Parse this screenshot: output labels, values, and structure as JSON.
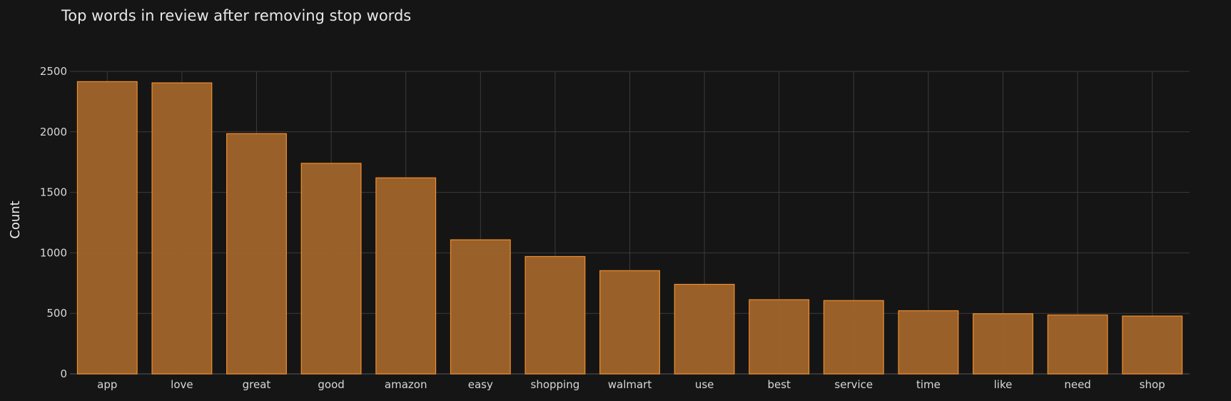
{
  "chart_data": {
    "type": "bar",
    "title": "Top words in review after removing stop words",
    "xlabel": "",
    "ylabel": "Count",
    "categories": [
      "app",
      "love",
      "great",
      "good",
      "amazon",
      "easy",
      "shopping",
      "walmart",
      "use",
      "best",
      "service",
      "time",
      "like",
      "need",
      "shop"
    ],
    "values": [
      2415,
      2405,
      1985,
      1740,
      1620,
      1108,
      970,
      853,
      740,
      613,
      606,
      522,
      497,
      487,
      478
    ],
    "ylim": [
      0,
      2500
    ],
    "yticks": [
      0,
      500,
      1000,
      1500,
      2000,
      2500
    ],
    "grid": true,
    "legend": "none",
    "colors": {
      "background": "#151515",
      "bar_fill": "#a0642b",
      "bar_stroke": "#f28e2b",
      "grid": "#3b3b3b",
      "text": "#d7d7d7",
      "title": "#e8e8e8"
    }
  }
}
